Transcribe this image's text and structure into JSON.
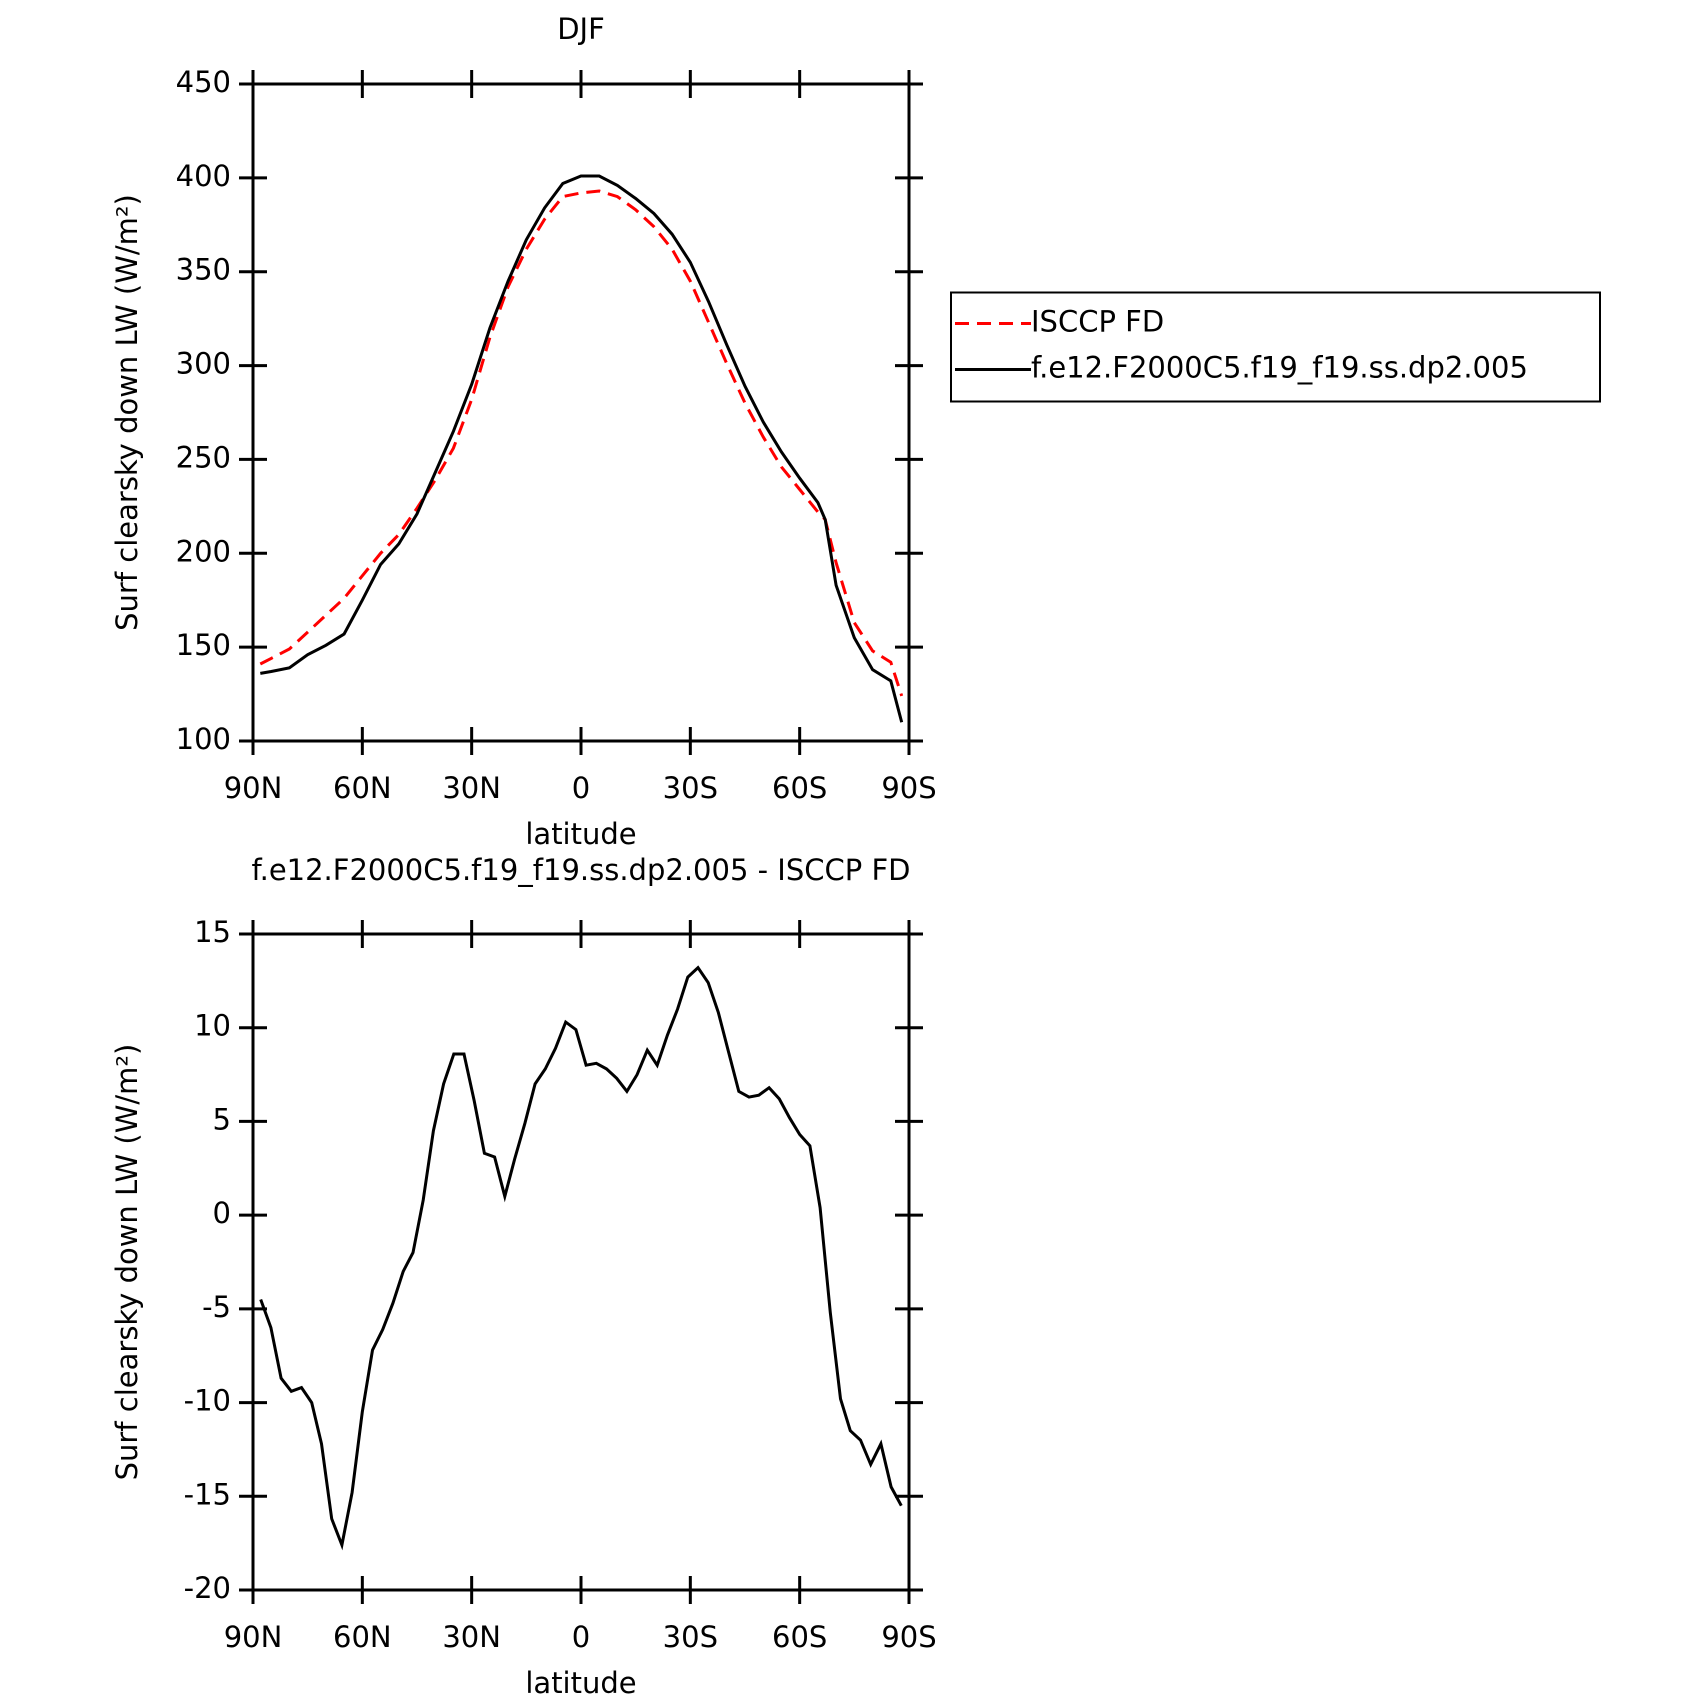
{
  "chart_data": [
    {
      "type": "line",
      "title": "DJF",
      "xlabel": "latitude",
      "ylabel": "Surf clearsky down LW (W/m²)",
      "x": [
        88,
        85,
        80,
        75,
        70,
        65,
        60,
        55,
        50,
        45,
        40,
        35,
        30,
        25,
        20,
        15,
        10,
        5,
        0,
        -5,
        -10,
        -15,
        -20,
        -25,
        -30,
        -35,
        -40,
        -45,
        -50,
        -55,
        -60,
        -65,
        -67,
        -70,
        -75,
        -80,
        -85,
        -88
      ],
      "series": [
        {
          "name": "ISCCP FD",
          "color": "#ff0000",
          "dash": true,
          "values": [
            141,
            144,
            149,
            158,
            167,
            176,
            188,
            200,
            210,
            224,
            239,
            256,
            282,
            315,
            342,
            362,
            378,
            390,
            392,
            393,
            390,
            383,
            374,
            362,
            345,
            323,
            301,
            280,
            262,
            246,
            234,
            222,
            218,
            195,
            163,
            148,
            142,
            124
          ]
        },
        {
          "name": "f.e12.F2000C5.f19_f19.ss.dp2.005",
          "color": "#000000",
          "dash": false,
          "values": [
            136,
            137,
            139,
            146,
            151,
            157,
            175,
            194,
            205,
            221,
            243,
            265,
            290,
            320,
            345,
            367,
            384,
            397,
            401,
            401,
            396,
            389,
            381,
            370,
            355,
            334,
            311,
            289,
            270,
            254,
            240,
            227,
            218,
            183,
            155,
            138,
            132,
            110
          ]
        }
      ],
      "xlim": [
        90,
        -90
      ],
      "xticks": [
        {
          "value": 90,
          "label": "90N"
        },
        {
          "value": 60,
          "label": "60N"
        },
        {
          "value": 30,
          "label": "30N"
        },
        0,
        {
          "value": -30,
          "label": "30S"
        },
        {
          "value": -60,
          "label": "60S"
        },
        {
          "value": -90,
          "label": "90S"
        }
      ],
      "ylim": [
        100,
        450
      ],
      "yticks": [
        100,
        150,
        200,
        250,
        300,
        350,
        400,
        450
      ],
      "legend": "right"
    },
    {
      "type": "line",
      "title": "f.e12.F2000C5.f19_f19.ss.dp2.005 - ISCCP FD",
      "xlabel": "latitude",
      "ylabel": "Surf clearsky down LW (W/m²)",
      "x": [
        87.9,
        85.1,
        82.3,
        79.5,
        76.7,
        73.9,
        71.2,
        68.4,
        65.6,
        62.8,
        60.0,
        57.2,
        54.4,
        51.6,
        48.8,
        46.1,
        43.3,
        40.5,
        37.7,
        34.9,
        32.1,
        29.3,
        26.5,
        23.7,
        20.9,
        18.2,
        15.4,
        12.6,
        9.8,
        7.0,
        4.2,
        1.4,
        -1.4,
        -4.2,
        -7.0,
        -9.8,
        -12.6,
        -15.4,
        -18.2,
        -20.9,
        -23.7,
        -26.5,
        -29.3,
        -32.1,
        -34.9,
        -37.7,
        -40.5,
        -43.3,
        -46.1,
        -48.8,
        -51.6,
        -54.4,
        -57.2,
        -60.0,
        -62.8,
        -65.6,
        -68.4,
        -71.2,
        -73.9,
        -76.7,
        -79.5,
        -82.3,
        -85.1,
        -87.9
      ],
      "values": [
        -4.5,
        -6,
        -8.7,
        -9.4,
        -9.2,
        -10,
        -12.2,
        -16.2,
        -17.6,
        -14.8,
        -10.5,
        -7.2,
        -6.1,
        -4.7,
        -3,
        -2,
        0.8,
        4.5,
        7,
        8.6,
        8.6,
        6.1,
        3.3,
        3.1,
        1,
        3,
        4.9,
        7,
        7.8,
        8.9,
        10.3,
        9.9,
        8,
        8.1,
        7.8,
        7.3,
        6.6,
        7.5,
        8.8,
        8,
        9.6,
        11,
        12.7,
        13.2,
        12.4,
        10.8,
        8.7,
        6.6,
        6.3,
        6.4,
        6.8,
        6.2,
        5.2,
        4.3,
        3.7,
        0.4,
        -5.2,
        -9.8,
        -11.5,
        -12,
        -13.3,
        -12.2,
        -14.5,
        -15.5
      ],
      "color": "#000000",
      "xlim": [
        90,
        -90
      ],
      "xticks": [
        {
          "value": 90,
          "label": "90N"
        },
        {
          "value": 60,
          "label": "60N"
        },
        {
          "value": 30,
          "label": "30N"
        },
        0,
        {
          "value": -30,
          "label": "30S"
        },
        {
          "value": -60,
          "label": "60S"
        },
        {
          "value": -90,
          "label": "90S"
        }
      ],
      "ylim": [
        -20,
        15
      ],
      "yticks": [
        -20,
        -15,
        -10,
        -5,
        0,
        5,
        10,
        15
      ]
    }
  ]
}
